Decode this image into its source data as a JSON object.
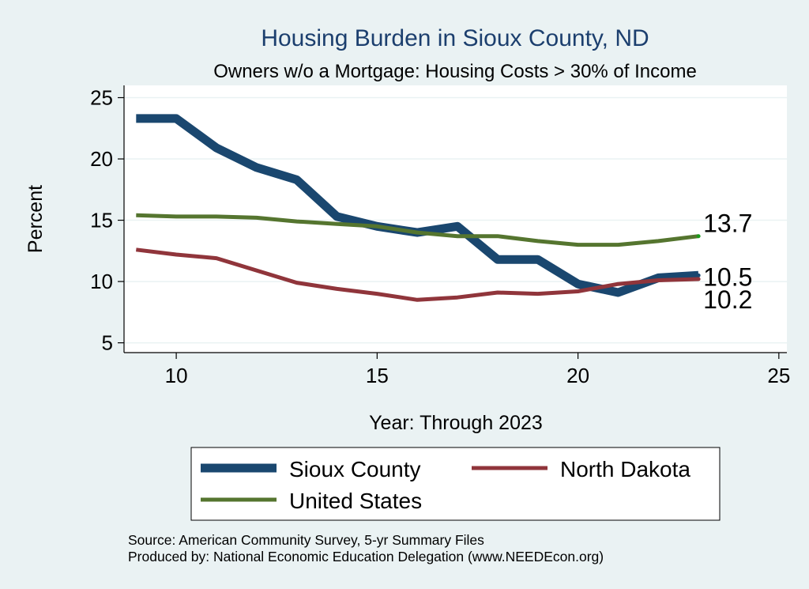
{
  "chart_data": {
    "type": "line",
    "title": "Housing Burden in Sioux County, ND",
    "subtitle": "Owners w/o a Mortgage: Housing Costs > 30% of Income",
    "xlabel": "Year: Through 2023",
    "ylabel": "Percent",
    "xlim": [
      8.7,
      25.2
    ],
    "ylim": [
      4.2,
      26.0
    ],
    "xticks": [
      10,
      15,
      20,
      25
    ],
    "yticks": [
      5,
      10,
      15,
      20,
      25
    ],
    "grid": true,
    "legend_position": "bottom",
    "series": [
      {
        "name": "Sioux County",
        "color": "#1a476f",
        "x": [
          9,
          10,
          11,
          12,
          13,
          14,
          15,
          16,
          17,
          18,
          19,
          20,
          21,
          22,
          23
        ],
        "y": [
          23.3,
          23.3,
          20.9,
          19.3,
          18.3,
          15.3,
          14.5,
          14.0,
          14.5,
          11.8,
          11.8,
          9.8,
          9.1,
          10.3,
          10.5
        ],
        "end_label": "10.5"
      },
      {
        "name": "North Dakota",
        "color": "#90353b",
        "x": [
          9,
          10,
          11,
          12,
          13,
          14,
          15,
          16,
          17,
          18,
          19,
          20,
          21,
          22,
          23
        ],
        "y": [
          12.6,
          12.2,
          11.9,
          10.9,
          9.9,
          9.4,
          9.0,
          8.5,
          8.7,
          9.1,
          9.0,
          9.2,
          9.8,
          10.1,
          10.2
        ],
        "end_label": "10.2"
      },
      {
        "name": "United States",
        "color": "#55752f",
        "x": [
          9,
          10,
          11,
          12,
          13,
          14,
          15,
          16,
          17,
          18,
          19,
          20,
          21,
          22,
          23
        ],
        "y": [
          15.4,
          15.3,
          15.3,
          15.2,
          14.9,
          14.7,
          14.5,
          14.0,
          13.7,
          13.7,
          13.3,
          13.0,
          13.0,
          13.3,
          13.7
        ],
        "end_label": "13.7"
      }
    ],
    "source_lines": [
      "Source: American Community Survey, 5-yr Summary Files",
      "Produced by: National Economic Education Delegation (www.NEEDEcon.org)"
    ]
  }
}
